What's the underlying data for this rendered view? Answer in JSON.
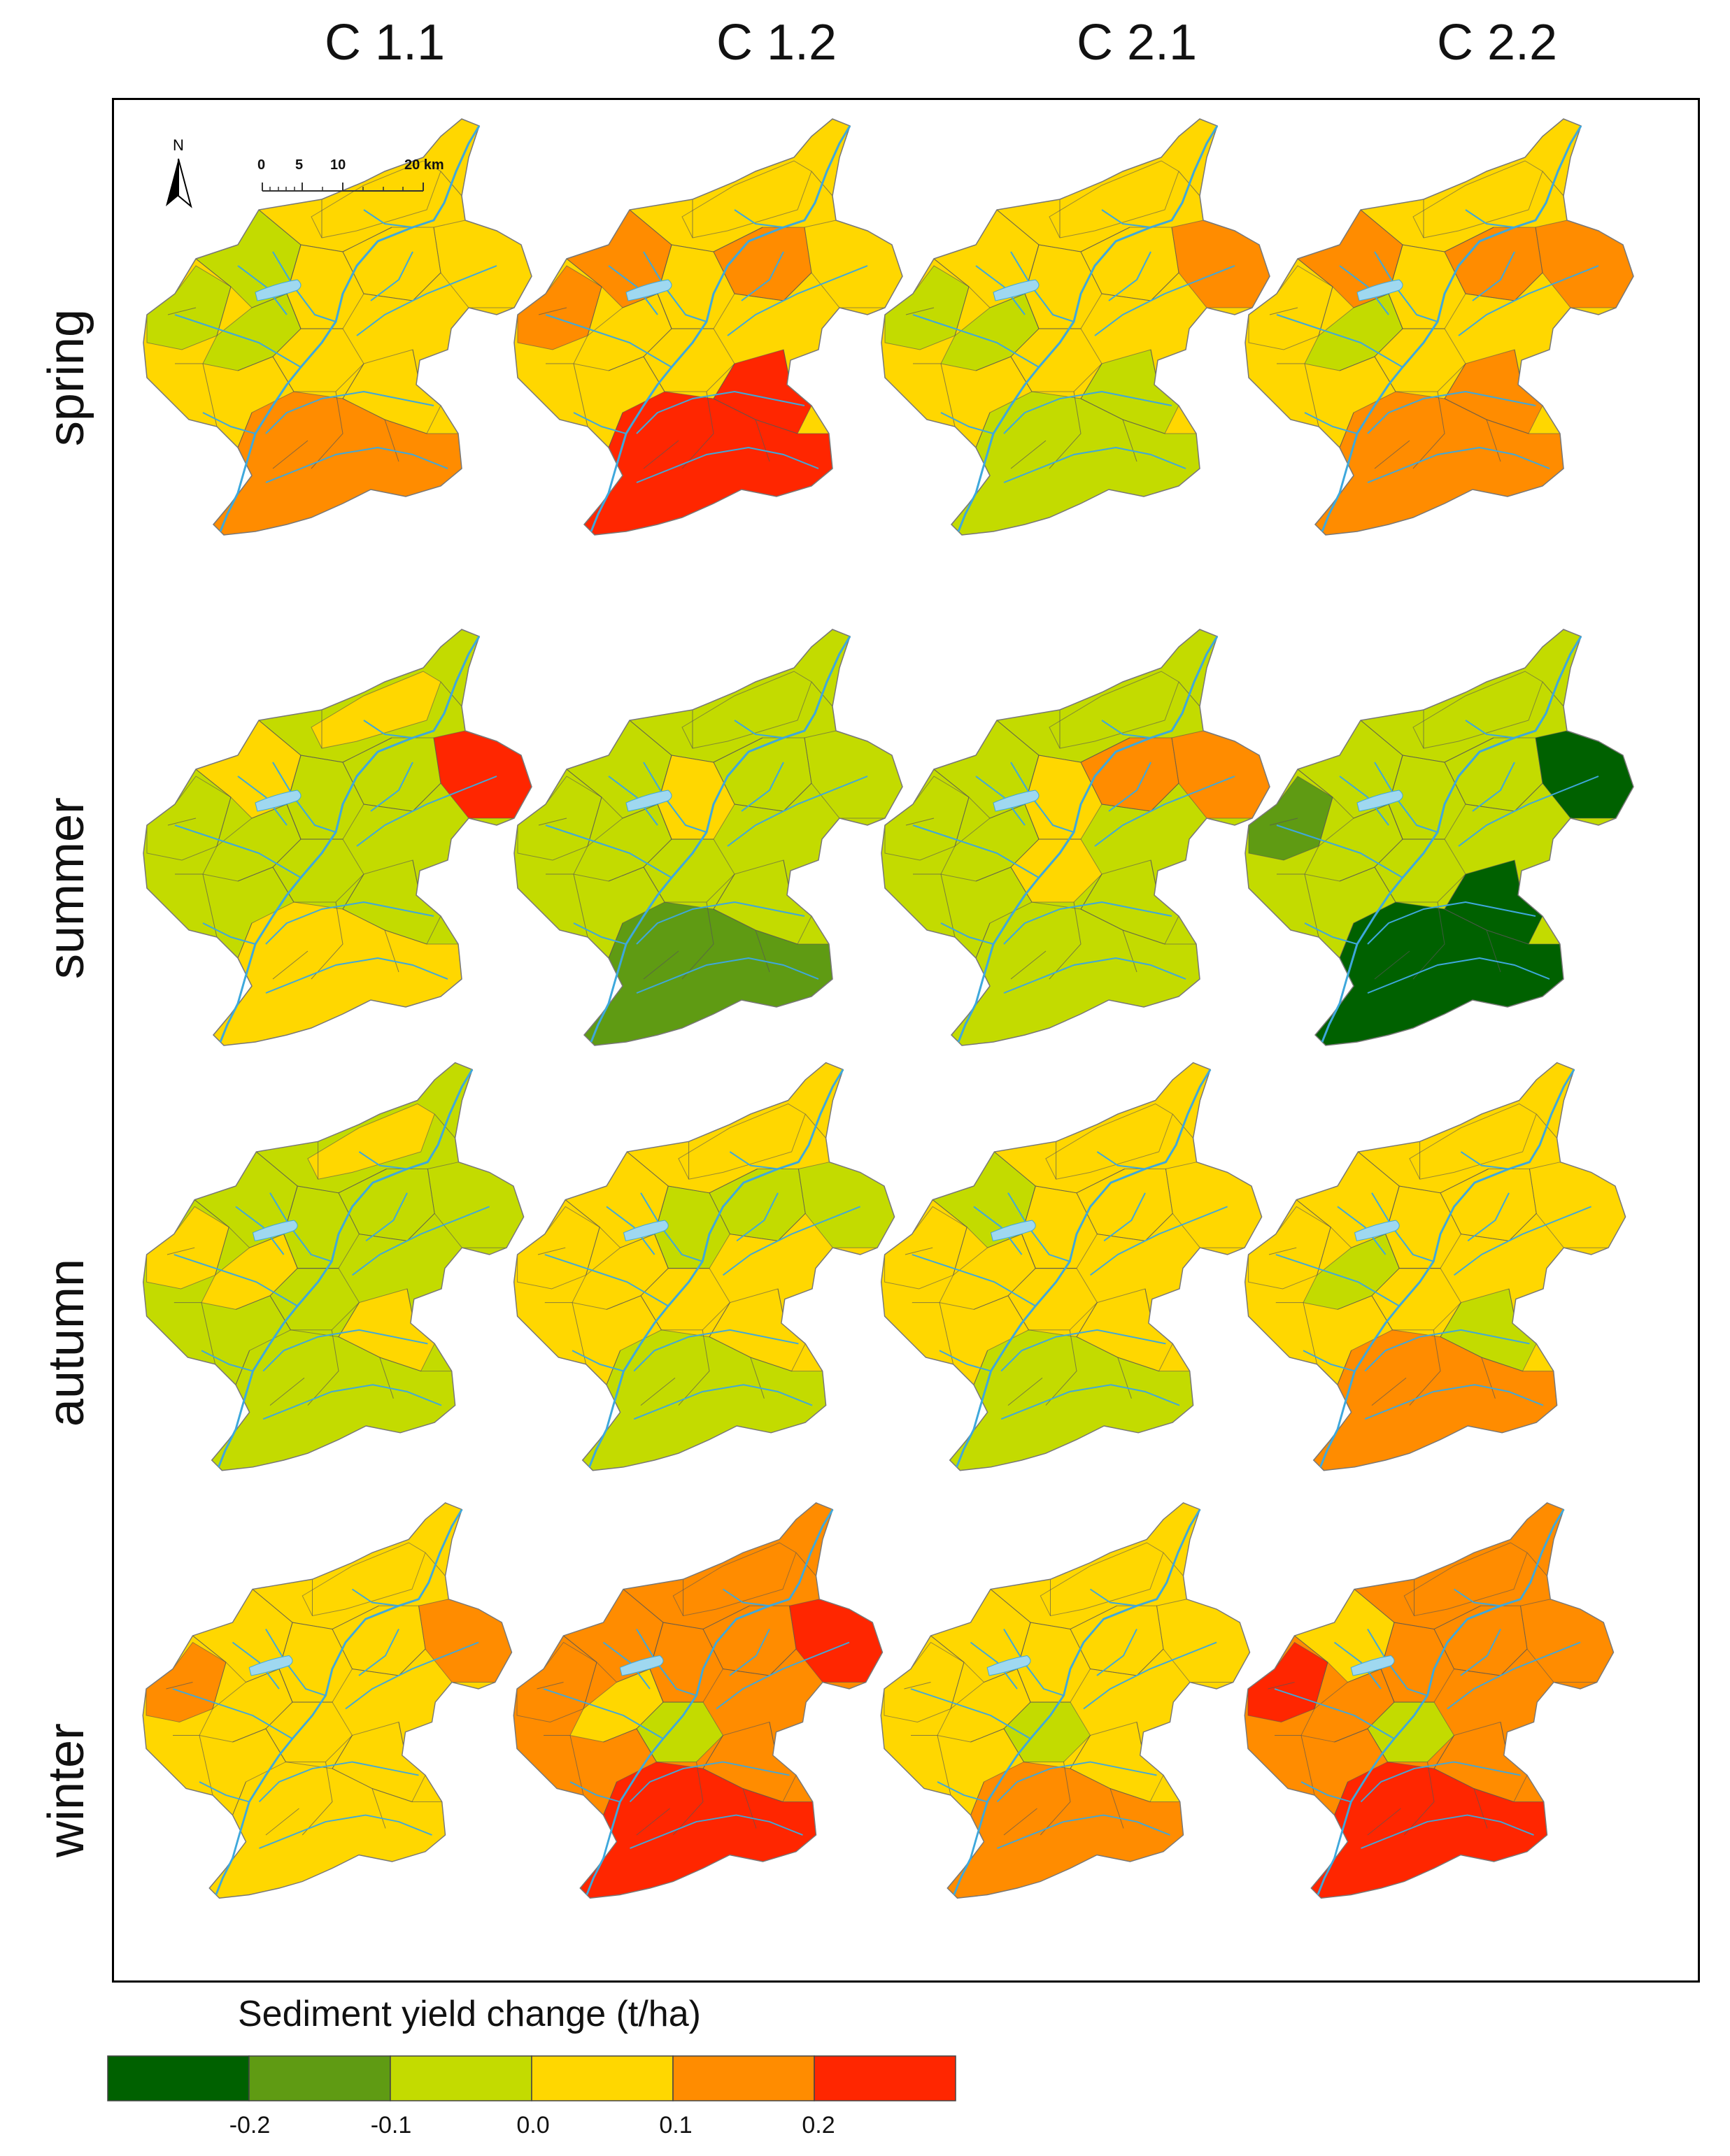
{
  "columns": [
    "C 1.1",
    "C 1.2",
    "C 2.1",
    "C 2.2"
  ],
  "rows": [
    "spring",
    "summer",
    "autumn",
    "winter"
  ],
  "north_arrow": {
    "label": "N"
  },
  "scale_bar": {
    "ticks": [
      "0",
      "5",
      "10",
      "20 km"
    ]
  },
  "legend": {
    "title": "Sediment yield change (t/ha)",
    "classes": [
      {
        "color": "#006100"
      },
      {
        "color": "#5f9b13"
      },
      {
        "color": "#c3db00"
      },
      {
        "color": "#ffd700"
      },
      {
        "color": "#ff8c00"
      },
      {
        "color": "#ff2600"
      }
    ],
    "tick_labels": [
      "-0.2",
      "-0.1",
      "0.0",
      "0.1",
      "0.2"
    ]
  },
  "map_colors": {
    "river": "#3ea8dc",
    "lake": "#9fd8f0",
    "subbasin_border": "#555555"
  },
  "panels": [
    {
      "column": "C 1.1",
      "row": "spring",
      "base_class": 4,
      "zones": [
        [
          5,
          4
        ],
        [
          1,
          3
        ],
        [
          3,
          3
        ],
        [
          6,
          4
        ],
        [
          2,
          3
        ],
        [
          8,
          4
        ],
        [
          9,
          5
        ]
      ]
    },
    {
      "column": "C 1.2",
      "row": "spring",
      "base_class": 4,
      "zones": [
        [
          2,
          5
        ],
        [
          6,
          4
        ],
        [
          8,
          6
        ],
        [
          9,
          6
        ],
        [
          5,
          5
        ],
        [
          1,
          5
        ]
      ]
    },
    {
      "column": "C 2.1",
      "row": "spring",
      "base_class": 4,
      "zones": [
        [
          1,
          3
        ],
        [
          3,
          3
        ],
        [
          8,
          3
        ],
        [
          9,
          3
        ],
        [
          6,
          5
        ],
        [
          2,
          4
        ]
      ]
    },
    {
      "column": "C 2.2",
      "row": "spring",
      "base_class": 4,
      "zones": [
        [
          2,
          5
        ],
        [
          5,
          5
        ],
        [
          6,
          5
        ],
        [
          8,
          5
        ],
        [
          9,
          5
        ],
        [
          3,
          3
        ]
      ]
    },
    {
      "column": "C 1.1",
      "row": "summer",
      "base_class": 3,
      "zones": [
        [
          6,
          6
        ],
        [
          0,
          4
        ],
        [
          2,
          4
        ],
        [
          9,
          4
        ]
      ]
    },
    {
      "column": "C 1.2",
      "row": "summer",
      "base_class": 3,
      "zones": [
        [
          9,
          2
        ],
        [
          8,
          3
        ],
        [
          4,
          4
        ]
      ]
    },
    {
      "column": "C 2.1",
      "row": "summer",
      "base_class": 3,
      "zones": [
        [
          6,
          5
        ],
        [
          5,
          5
        ],
        [
          7,
          4
        ],
        [
          4,
          4
        ]
      ]
    },
    {
      "column": "C 2.2",
      "row": "summer",
      "base_class": 3,
      "zones": [
        [
          8,
          1
        ],
        [
          9,
          1
        ],
        [
          6,
          1
        ],
        [
          1,
          2
        ],
        [
          2,
          3
        ]
      ]
    },
    {
      "column": "C 1.1",
      "row": "autumn",
      "base_class": 3,
      "zones": [
        [
          1,
          4
        ],
        [
          3,
          4
        ],
        [
          8,
          4
        ],
        [
          0,
          4
        ]
      ]
    },
    {
      "column": "C 1.2",
      "row": "autumn",
      "base_class": 4,
      "zones": [
        [
          4,
          3
        ],
        [
          5,
          3
        ],
        [
          6,
          3
        ],
        [
          9,
          3
        ]
      ]
    },
    {
      "column": "C 2.1",
      "row": "autumn",
      "base_class": 4,
      "zones": [
        [
          2,
          3
        ],
        [
          9,
          3
        ]
      ]
    },
    {
      "column": "C 2.2",
      "row": "autumn",
      "base_class": 4,
      "zones": [
        [
          9,
          5
        ],
        [
          8,
          3
        ],
        [
          3,
          3
        ]
      ]
    },
    {
      "column": "C 1.1",
      "row": "winter",
      "base_class": 4,
      "zones": [
        [
          1,
          5
        ],
        [
          6,
          5
        ]
      ]
    },
    {
      "column": "C 1.2",
      "row": "winter",
      "base_class": 5,
      "zones": [
        [
          9,
          6
        ],
        [
          6,
          6
        ],
        [
          7,
          3
        ],
        [
          3,
          4
        ]
      ]
    },
    {
      "column": "C 2.1",
      "row": "winter",
      "base_class": 4,
      "zones": [
        [
          9,
          5
        ],
        [
          7,
          3
        ]
      ]
    },
    {
      "column": "C 2.2",
      "row": "winter",
      "base_class": 5,
      "zones": [
        [
          1,
          6
        ],
        [
          9,
          6
        ],
        [
          7,
          3
        ],
        [
          2,
          4
        ]
      ]
    }
  ]
}
